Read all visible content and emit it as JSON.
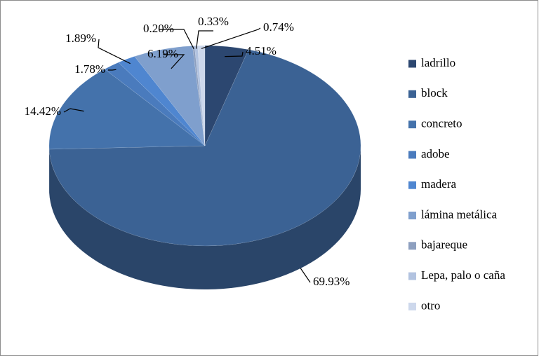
{
  "chart_data": {
    "type": "pie",
    "categories": [
      "ladrillo",
      "block",
      "concreto",
      "adobe",
      "madera",
      "lámina metálica",
      "bajareque",
      "Lepa, palo o caña",
      "otro"
    ],
    "values": [
      4.51,
      69.93,
      14.42,
      1.78,
      1.89,
      6.19,
      0.2,
      0.33,
      0.74
    ],
    "value_labels": [
      "4.51%",
      "69.93%",
      "14.42%",
      "1.78%",
      "1.89%",
      "6.19%",
      "0.20%",
      "0.33%",
      "0.74%"
    ],
    "colors": [
      "#2c4770",
      "#3b6294",
      "#4472ab",
      "#4a7bbd",
      "#4f86d0",
      "#7f9fcd",
      "#8d9fbf",
      "#b2c3e0",
      "#cdd8ec"
    ],
    "legend": "right"
  }
}
